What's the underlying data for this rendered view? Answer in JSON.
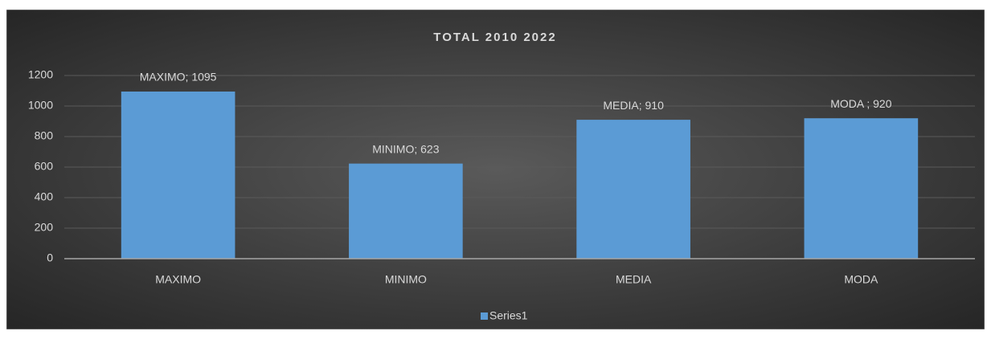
{
  "chart_data": {
    "type": "bar",
    "title": "TOTAL 2010 2022",
    "categories": [
      "MAXIMO",
      "MINIMO",
      "MEDIA",
      "MODA"
    ],
    "series": [
      {
        "name": "Series1",
        "color": "#5b9bd5",
        "values": [
          1095,
          623,
          910,
          920
        ],
        "value_labels": [
          "MAXIMO; 1095",
          "MINIMO; 623",
          "MEDIA; 910",
          "MODA ; 920"
        ]
      }
    ],
    "ylim": [
      0,
      1200
    ],
    "yticks": [
      0,
      200,
      400,
      600,
      800,
      1000,
      1200
    ],
    "grid": true,
    "legend": "bottom"
  }
}
